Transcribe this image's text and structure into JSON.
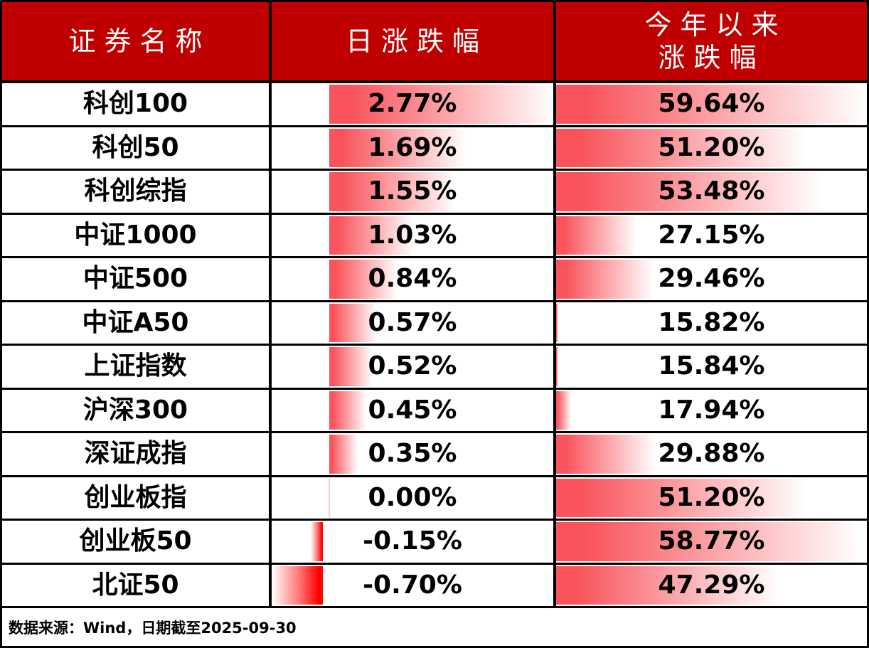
{
  "chart_data": {
    "type": "table",
    "title": "",
    "categories": [
      "科创100",
      "科创50",
      "科创综指",
      "中证1000",
      "中证500",
      "中证A50",
      "上证指数",
      "沪深300",
      "深证成指",
      "创业板指",
      "创业板50",
      "北证50"
    ],
    "series": [
      {
        "name": "日涨跌幅",
        "unit": "%",
        "values": [
          2.77,
          1.69,
          1.55,
          1.03,
          0.84,
          0.57,
          0.52,
          0.45,
          0.35,
          0.0,
          -0.15,
          -0.7
        ]
      },
      {
        "name": "今年以来涨跌幅",
        "unit": "%",
        "values": [
          59.64,
          51.2,
          53.48,
          27.15,
          29.46,
          15.82,
          15.84,
          17.94,
          29.88,
          51.2,
          58.77,
          47.29
        ]
      }
    ],
    "layout_hints": {
      "data_bars": "gradient red bars behind values, bar length proportional to value; daily column has shared axis for negative values; YTD column scaled from min value to max value",
      "legend": "none",
      "grid": "black cell borders"
    },
    "note": "数据来源：Wind，日期截至2025-09-30"
  },
  "table": {
    "headers": {
      "name": "证券名称",
      "daily": "日涨跌幅",
      "ytd": "今年以来\n涨跌幅"
    },
    "rows": [
      {
        "name": "科创100",
        "daily": "2.77%",
        "ytd": "59.64%"
      },
      {
        "name": "科创50",
        "daily": "1.69%",
        "ytd": "51.20%"
      },
      {
        "name": "科创综指",
        "daily": "1.55%",
        "ytd": "53.48%"
      },
      {
        "name": "中证1000",
        "daily": "1.03%",
        "ytd": "27.15%"
      },
      {
        "name": "中证500",
        "daily": "0.84%",
        "ytd": "29.46%"
      },
      {
        "name": "中证A50",
        "daily": "0.57%",
        "ytd": "15.82%"
      },
      {
        "name": "上证指数",
        "daily": "0.52%",
        "ytd": "15.84%"
      },
      {
        "name": "沪深300",
        "daily": "0.45%",
        "ytd": "17.94%"
      },
      {
        "name": "深证成指",
        "daily": "0.35%",
        "ytd": "29.88%"
      },
      {
        "name": "创业板指",
        "daily": "0.00%",
        "ytd": "51.20%"
      },
      {
        "name": "创业板50",
        "daily": "-0.15%",
        "ytd": "58.77%"
      },
      {
        "name": "北证50",
        "daily": "-0.70%",
        "ytd": "47.29%"
      }
    ]
  },
  "footer": {
    "source_note": "数据来源：Wind，日期截至2025-09-30"
  },
  "colors": {
    "header_bg": "#C00000",
    "header_text": "#FFFFFF",
    "positive_bar": "#F9545C",
    "negative_bar": "#FF0000",
    "zero_bar": "#FFC9C9",
    "border": "#000000",
    "text": "#000000"
  }
}
